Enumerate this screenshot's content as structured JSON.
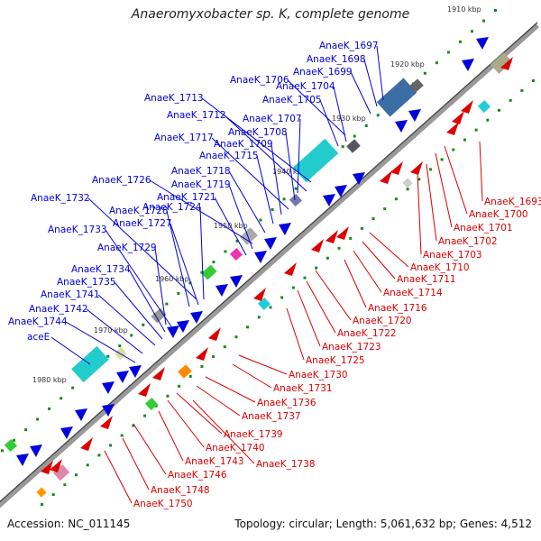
{
  "title": "Anaeromyxobacter sp. K, complete genome",
  "footer": {
    "accession": "Accession: NC_011145",
    "topology": "Topology: circular; Length: 5,061,632 bp; Genes: 4,512"
  },
  "kbp_labels": [
    "1910 kbp",
    "1920 kbp",
    "1930 kbp",
    "1940 kbp",
    "1950 kbp",
    "1960 kbp",
    "1970 kbp",
    "1980 kbp"
  ],
  "forward_gene_labels": [
    "AnaeK_1697",
    "AnaeK_1698",
    "AnaeK_1699",
    "AnaeK_1706",
    "AnaeK_1704",
    "AnaeK_1705",
    "AnaeK_1713",
    "AnaeK_1712",
    "AnaeK_1707",
    "AnaeK_1708",
    "AnaeK_1717",
    "AnaeK_1709",
    "AnaeK_1715",
    "AnaeK_1718",
    "AnaeK_1726",
    "AnaeK_1719",
    "AnaeK_1721",
    "AnaeK_1732",
    "AnaeK_1728",
    "AnaeK_1724",
    "AnaeK_1727",
    "AnaeK_1733",
    "AnaeK_1729",
    "AnaeK_1734",
    "AnaeK_1735",
    "AnaeK_1741",
    "AnaeK_1742",
    "AnaeK_1744",
    "aceE"
  ],
  "reverse_gene_labels": [
    "AnaeK_1693",
    "AnaeK_1700",
    "AnaeK_1701",
    "AnaeK_1702",
    "AnaeK_1703",
    "AnaeK_1710",
    "AnaeK_1711",
    "AnaeK_1714",
    "AnaeK_1716",
    "AnaeK_1720",
    "AnaeK_1722",
    "AnaeK_1723",
    "AnaeK_1725",
    "AnaeK_1730",
    "AnaeK_1731",
    "AnaeK_1736",
    "AnaeK_1737",
    "AnaeK_1739",
    "AnaeK_1740",
    "AnaeK_1743",
    "AnaeK_1738",
    "AnaeK_1746",
    "AnaeK_1748",
    "AnaeK_1750"
  ],
  "colors": {
    "forward": "#0000dd",
    "reverse": "#dd0000",
    "backbone": "#888888",
    "tick": "#1a8a1a"
  }
}
